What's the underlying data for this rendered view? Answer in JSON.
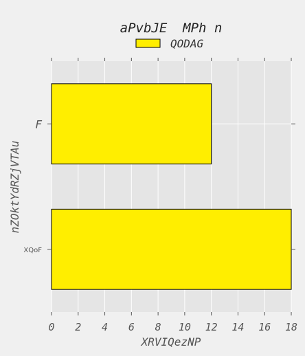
{
  "chart_data": {
    "type": "bar",
    "orientation": "horizontal",
    "title": "aPvbJE  MPh n",
    "xlabel": "XRVIQezNP",
    "ylabel": "nZOktYdRZjVTAu",
    "categories": [
      "F",
      "XQoF"
    ],
    "series": [
      {
        "name": "QODAG",
        "values": [
          12,
          18
        ],
        "color": "#ffee00"
      }
    ],
    "xlim": [
      0,
      18
    ],
    "xticks": [
      "0",
      "2",
      "4",
      "6",
      "8",
      "10",
      "12",
      "14",
      "16",
      "18"
    ],
    "grid": true,
    "legend_position": "top-center",
    "style": {
      "background": "#f0f0f0",
      "plot_background": "#e5e5e5",
      "grid_color": "#ffffff",
      "bar_edge": "#000000"
    }
  }
}
